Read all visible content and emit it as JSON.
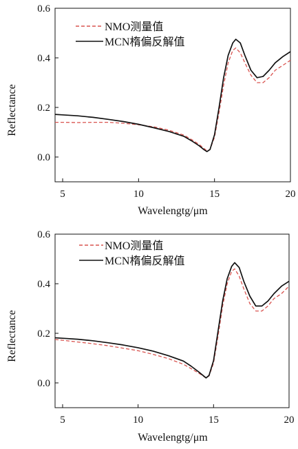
{
  "chart_data": [
    {
      "type": "line",
      "xlabel": "Wavelengtg/μm",
      "ylabel": "Reflectance",
      "xlim": [
        4.5,
        20
      ],
      "ylim": [
        -0.1,
        0.6
      ],
      "xticks": [
        5,
        10,
        15,
        20
      ],
      "yticks": [
        0.0,
        0.2,
        0.4,
        0.6
      ],
      "ytick_labels": [
        "0.0",
        "0.2",
        "0.4",
        "0.6"
      ],
      "grid": false,
      "legend_position": "top-left",
      "series": [
        {
          "name": "NMO测量值",
          "style": "dashed",
          "color": "#d9534f",
          "x": [
            4.5,
            5,
            6,
            7,
            8,
            9,
            10,
            11,
            12,
            13,
            13.5,
            14,
            14.3,
            14.5,
            14.7,
            15,
            15.3,
            15.6,
            15.9,
            16.2,
            16.4,
            16.7,
            17,
            17.4,
            17.8,
            18.2,
            18.6,
            19,
            19.5,
            20
          ],
          "y": [
            0.14,
            0.14,
            0.139,
            0.14,
            0.14,
            0.136,
            0.13,
            0.122,
            0.108,
            0.088,
            0.07,
            0.05,
            0.035,
            0.025,
            0.03,
            0.08,
            0.18,
            0.29,
            0.38,
            0.43,
            0.44,
            0.42,
            0.38,
            0.33,
            0.3,
            0.3,
            0.32,
            0.35,
            0.37,
            0.39
          ]
        },
        {
          "name": "MCN楕偏反解值",
          "style": "solid",
          "color": "#111111",
          "x": [
            4.5,
            5,
            6,
            7,
            8,
            9,
            10,
            11,
            12,
            13,
            13.5,
            14,
            14.3,
            14.5,
            14.7,
            15,
            15.3,
            15.6,
            15.9,
            16.2,
            16.4,
            16.7,
            17,
            17.4,
            17.8,
            18.2,
            18.6,
            19,
            19.5,
            20
          ],
          "y": [
            0.172,
            0.17,
            0.166,
            0.16,
            0.152,
            0.143,
            0.132,
            0.118,
            0.103,
            0.083,
            0.065,
            0.045,
            0.03,
            0.022,
            0.03,
            0.09,
            0.2,
            0.32,
            0.41,
            0.46,
            0.475,
            0.46,
            0.41,
            0.35,
            0.32,
            0.325,
            0.35,
            0.38,
            0.405,
            0.425
          ]
        }
      ]
    },
    {
      "type": "line",
      "xlabel": "Wavelengtg/μm",
      "ylabel": "Reflectance",
      "xlim": [
        4.5,
        20
      ],
      "ylim": [
        -0.1,
        0.6
      ],
      "xticks": [
        5,
        10,
        15,
        20
      ],
      "yticks": [
        0.0,
        0.2,
        0.4,
        0.6
      ],
      "ytick_labels": [
        "0.0",
        "0.2",
        "0.4",
        "0.6"
      ],
      "grid": false,
      "legend_position": "top-left",
      "series": [
        {
          "name": "NMO测量值",
          "style": "dashed",
          "color": "#d9534f",
          "x": [
            4.5,
            5,
            6,
            7,
            8,
            9,
            10,
            11,
            12,
            13,
            13.5,
            14,
            14.3,
            14.5,
            14.7,
            15,
            15.3,
            15.6,
            15.9,
            16.2,
            16.4,
            16.7,
            17,
            17.4,
            17.8,
            18.2,
            18.6,
            19,
            19.5,
            20
          ],
          "y": [
            0.175,
            0.172,
            0.165,
            0.158,
            0.15,
            0.14,
            0.13,
            0.115,
            0.098,
            0.075,
            0.058,
            0.04,
            0.028,
            0.02,
            0.028,
            0.08,
            0.19,
            0.31,
            0.4,
            0.45,
            0.46,
            0.43,
            0.38,
            0.32,
            0.29,
            0.29,
            0.31,
            0.34,
            0.36,
            0.39
          ]
        },
        {
          "name": "MCN楕偏反解值",
          "style": "solid",
          "color": "#111111",
          "x": [
            4.5,
            5,
            6,
            7,
            8,
            9,
            10,
            11,
            12,
            13,
            13.5,
            14,
            14.3,
            14.5,
            14.7,
            15,
            15.3,
            15.6,
            15.9,
            16.2,
            16.4,
            16.7,
            17,
            17.4,
            17.8,
            18.2,
            18.6,
            19,
            19.5,
            20
          ],
          "y": [
            0.182,
            0.18,
            0.176,
            0.17,
            0.162,
            0.153,
            0.142,
            0.128,
            0.11,
            0.088,
            0.068,
            0.045,
            0.03,
            0.02,
            0.03,
            0.09,
            0.21,
            0.33,
            0.42,
            0.47,
            0.485,
            0.465,
            0.41,
            0.35,
            0.31,
            0.31,
            0.33,
            0.36,
            0.39,
            0.41
          ]
        }
      ]
    }
  ]
}
